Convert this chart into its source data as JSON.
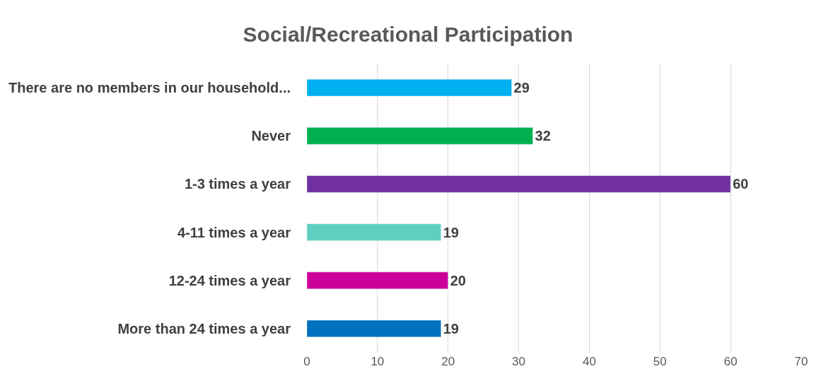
{
  "chart_data": {
    "type": "bar",
    "orientation": "horizontal",
    "title": "Social/Recreational Participation",
    "categories": [
      "There are no members in our household...",
      "Never",
      "1-3 times a year",
      "4-11 times a year",
      "12-24 times a year",
      "More than 24 times a year"
    ],
    "values": [
      29,
      32,
      60,
      19,
      20,
      19
    ],
    "colors": [
      "#00b0f0",
      "#00b050",
      "#7030a0",
      "#5fd0c0",
      "#cc0099",
      "#0070c0"
    ],
    "xlim": [
      0,
      70
    ],
    "xticks": [
      0,
      10,
      20,
      30,
      40,
      50,
      60,
      70
    ],
    "grid": "x",
    "data_labels": true
  }
}
